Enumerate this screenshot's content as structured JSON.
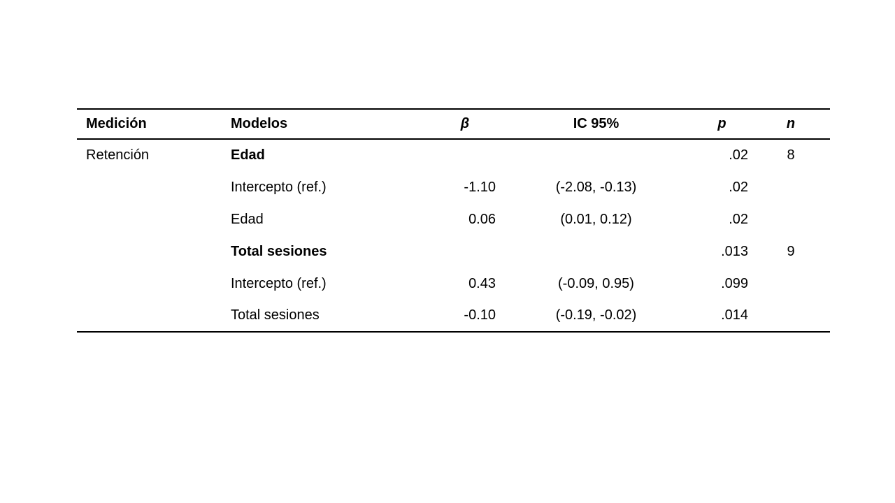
{
  "table": {
    "columns": [
      {
        "label": "Medición"
      },
      {
        "label": "Modelos"
      },
      {
        "label": "β"
      },
      {
        "label": "IC 95%"
      },
      {
        "label": "p"
      },
      {
        "label": "n"
      }
    ],
    "rows": [
      {
        "medicion": "Retención",
        "modelo": "Edad",
        "beta": "",
        "ic": "",
        "p": ".02",
        "n": "8"
      },
      {
        "medicion": "",
        "modelo": "Intercepto (ref.)",
        "beta": "-1.10",
        "ic": "(-2.08, -0.13)",
        "p": ".02",
        "n": ""
      },
      {
        "medicion": "",
        "modelo": "Edad",
        "beta": "0.06",
        "ic": "(0.01, 0.12)",
        "p": ".02",
        "n": ""
      },
      {
        "medicion": "",
        "modelo": "Total sesiones",
        "beta": "",
        "ic": "",
        "p": ".013",
        "n": "9"
      },
      {
        "medicion": "",
        "modelo": "Intercepto (ref.)",
        "beta": "0.43",
        "ic": "(-0.09, 0.95)",
        "p": ".099",
        "n": ""
      },
      {
        "medicion": "",
        "modelo": "Total sesiones",
        "beta": "-0.10",
        "ic": "(-0.19, -0.02)",
        "p": ".014",
        "n": ""
      }
    ]
  }
}
